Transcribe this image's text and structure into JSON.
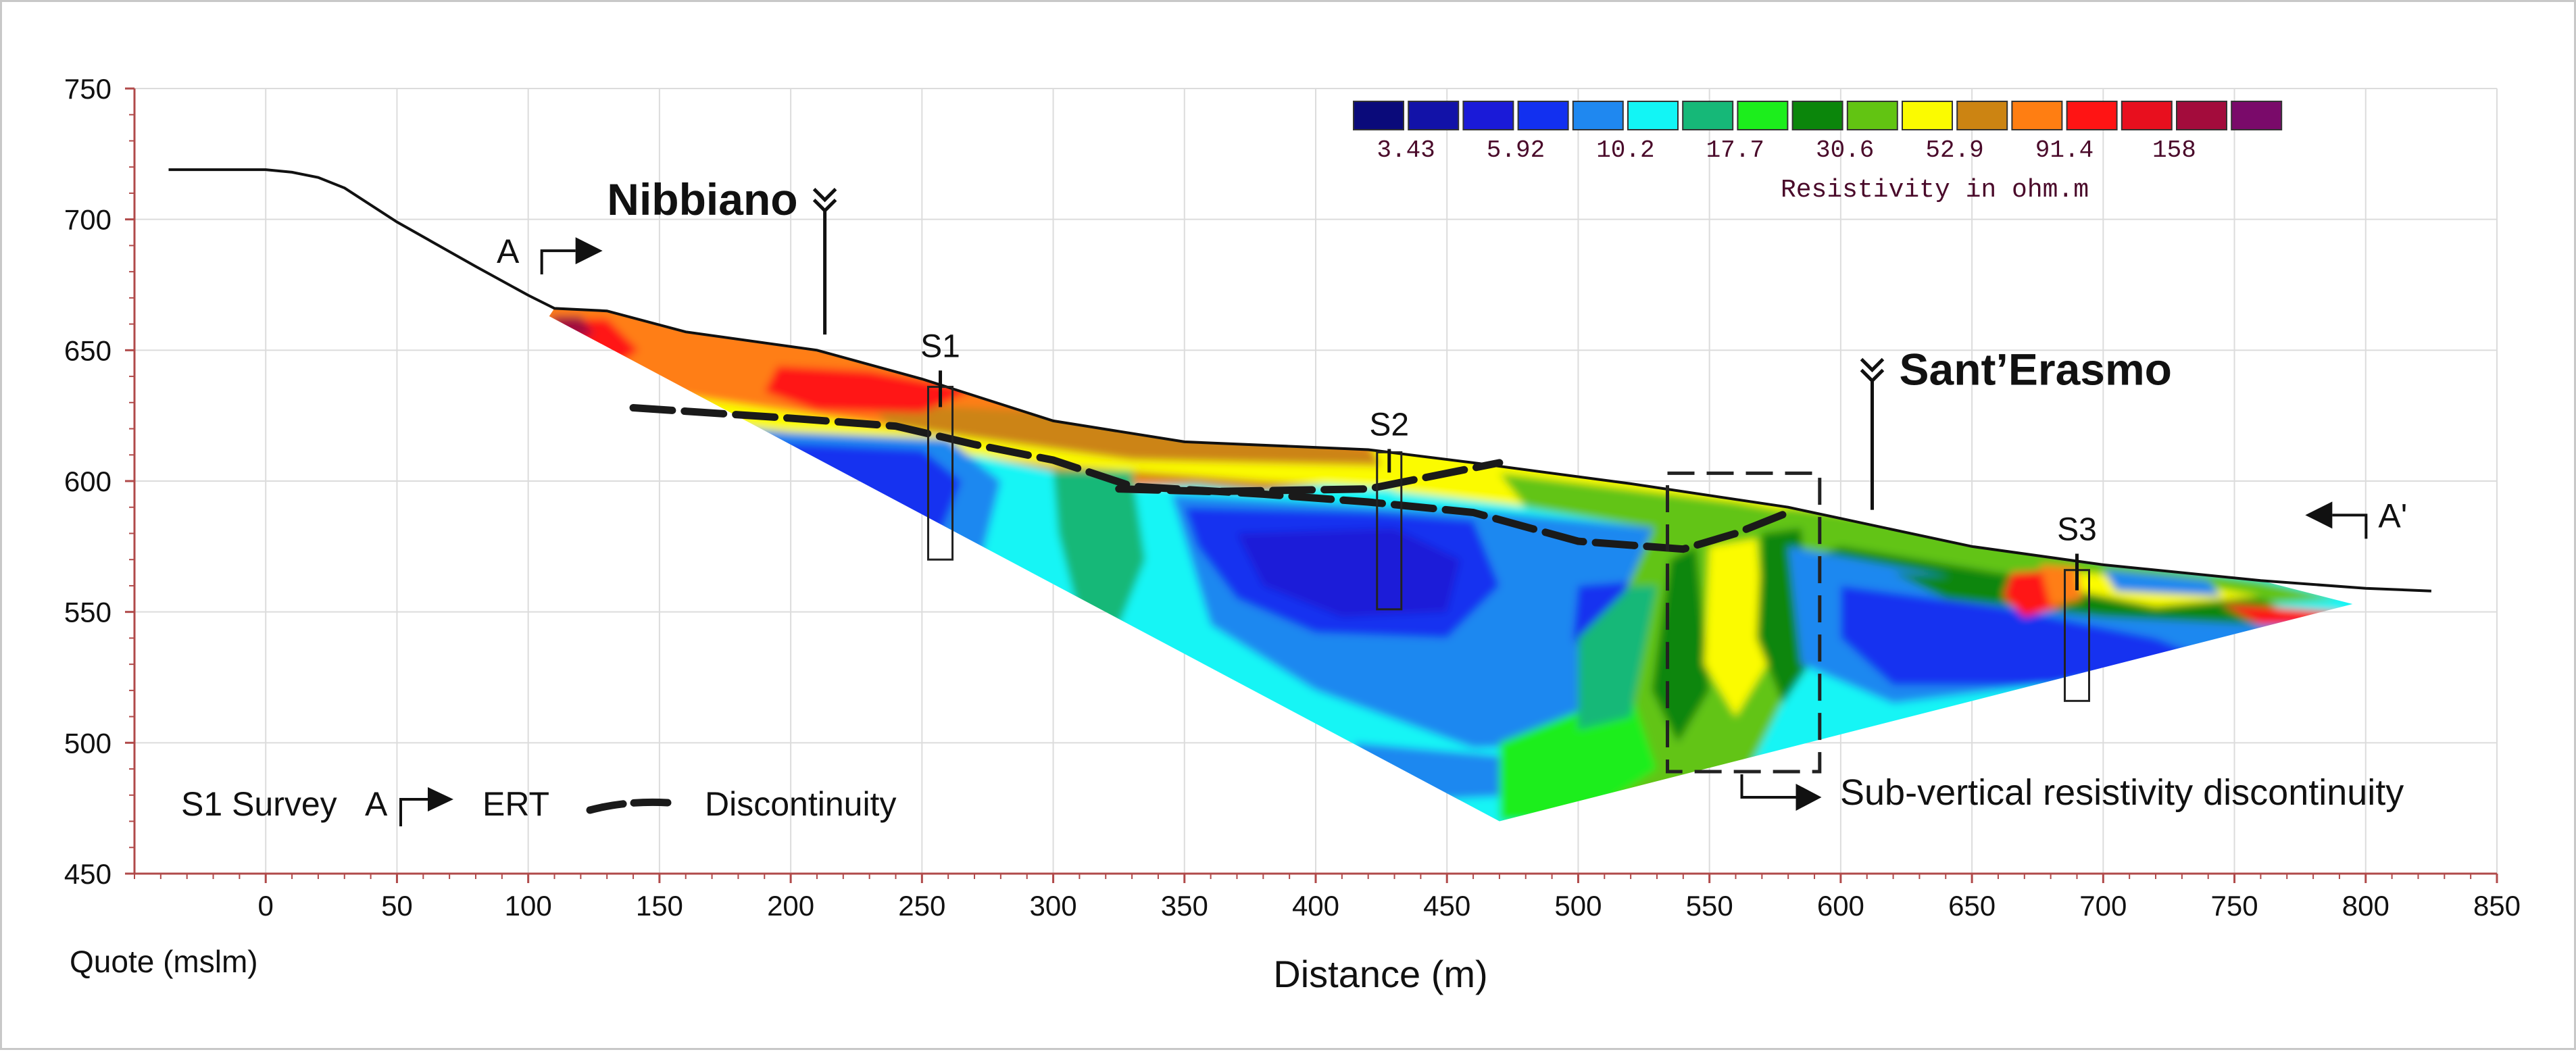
{
  "chart_data": {
    "type": "contour-section",
    "title": "",
    "xlabel": "Distance (m)",
    "ylabel": "Quote (mslm)",
    "xlim": [
      -50,
      850
    ],
    "ylim": [
      450,
      750
    ],
    "x_ticks": [
      0,
      50,
      100,
      150,
      200,
      250,
      300,
      350,
      400,
      450,
      500,
      550,
      600,
      650,
      700,
      750,
      800,
      850
    ],
    "y_ticks": [
      450,
      500,
      550,
      600,
      650,
      700,
      750
    ],
    "legend": {
      "title": "Resistivity in ohm.m",
      "labels": [
        "3.43",
        "5.92",
        "10.2",
        "17.7",
        "30.6",
        "52.9",
        "91.4",
        "158"
      ],
      "colors": [
        "#0a0a7a",
        "#1212a8",
        "#1a1ad8",
        "#1230f0",
        "#1f88f0",
        "#12f5f5",
        "#16b878",
        "#1cee1c",
        "#0b860b",
        "#62c412",
        "#fbfb00",
        "#cc8412",
        "#ff7e12",
        "#ff1414",
        "#e80f1e",
        "#a30c3c",
        "#7a0a6a"
      ]
    },
    "topography": [
      [
        -37,
        719
      ],
      [
        0,
        719
      ],
      [
        10,
        718
      ],
      [
        20,
        716
      ],
      [
        30,
        712
      ],
      [
        50,
        699
      ],
      [
        80,
        682
      ],
      [
        100,
        671
      ],
      [
        110,
        666
      ],
      [
        130,
        665
      ],
      [
        160,
        657
      ],
      [
        210,
        650
      ],
      [
        250,
        639
      ],
      [
        300,
        623
      ],
      [
        350,
        615
      ],
      [
        420,
        612
      ],
      [
        460,
        607
      ],
      [
        520,
        599
      ],
      [
        580,
        590
      ],
      [
        650,
        575
      ],
      [
        700,
        568
      ],
      [
        760,
        562
      ],
      [
        800,
        559
      ],
      [
        825,
        558
      ]
    ],
    "discontinuity_line": [
      [
        140,
        628
      ],
      [
        200,
        624
      ],
      [
        240,
        621
      ],
      [
        270,
        614
      ],
      [
        300,
        608
      ],
      [
        330,
        598
      ],
      [
        380,
        595
      ],
      [
        420,
        592
      ],
      [
        460,
        588
      ],
      [
        500,
        577
      ],
      [
        540,
        574
      ],
      [
        560,
        580
      ],
      [
        580,
        588
      ]
    ],
    "discontinuity_short": [
      [
        325,
        597
      ],
      [
        360,
        596
      ],
      [
        420,
        597
      ],
      [
        470,
        607
      ]
    ],
    "surveys": [
      {
        "name": "S1",
        "x": 257,
        "box_top": 636,
        "box_bottom": 570,
        "label_y": 650
      },
      {
        "name": "S2",
        "x": 428,
        "box_top": 611,
        "box_bottom": 551,
        "label_y": 620
      },
      {
        "name": "S3",
        "x": 690,
        "box_top": 566,
        "box_bottom": 516,
        "label_y": 580
      }
    ],
    "sites": [
      {
        "name": "Nibbiano",
        "x": 213,
        "y_top": 709,
        "y_bottom": 656
      },
      {
        "name": "Sant’Erasmo",
        "x": 612,
        "y_top": 644,
        "y_bottom": 589
      }
    ],
    "section_marks": [
      {
        "name": "A",
        "x": 100,
        "y": 688
      },
      {
        "name": "A'",
        "x": 795,
        "y": 587
      }
    ],
    "highlight_box": {
      "x_range": [
        534,
        592
      ],
      "y_range": [
        489,
        603
      ]
    },
    "annotation": "Sub-vertical resistivity discontinuity",
    "key": {
      "survey": "S1 Survey",
      "ert": "ERT",
      "ert_letter": "A",
      "discontinuity": "Discontinuity"
    }
  }
}
